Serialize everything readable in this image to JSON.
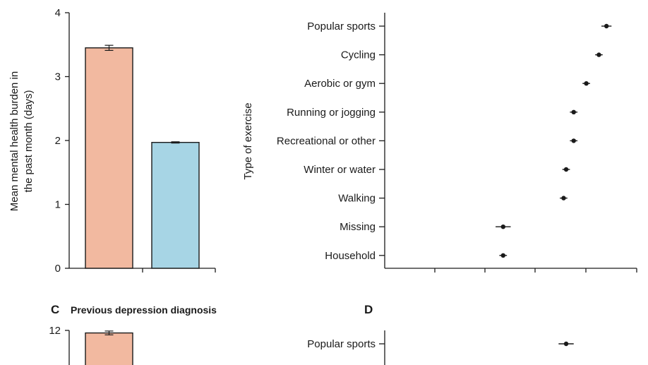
{
  "figure": {
    "panel_c_letter": "C",
    "panel_c_title": "Previous depression diagnosis",
    "panel_d_letter": "D"
  },
  "colors": {
    "bar_1": "#f2b9a0",
    "bar_2": "#a7d5e5",
    "outline": "#1a1a1a"
  },
  "chart_data": [
    {
      "id": "panel-a",
      "type": "bar",
      "ylabel_line1": "Mean mental health burden in",
      "ylabel_line2": "the past month (days)",
      "ylim": [
        0,
        4
      ],
      "yticks": [
        "0",
        "1",
        "2",
        "3",
        "4"
      ],
      "categories": [
        "",
        ""
      ],
      "values": [
        3.45,
        1.97
      ],
      "errors": [
        0.04,
        0.01
      ],
      "grid": false
    },
    {
      "id": "panel-b",
      "type": "scatter",
      "ylabel": "Type of exercise",
      "categories": [
        "Popular sports",
        "Cycling",
        "Aerobic or gym",
        "Running or jogging",
        "Recreational or other",
        "Winter or water",
        "Walking",
        "Missing",
        "Household"
      ],
      "values": [
        0.88,
        0.85,
        0.8,
        0.75,
        0.75,
        0.72,
        0.71,
        0.47,
        0.47
      ],
      "errors": [
        0.02,
        0.015,
        0.015,
        0.015,
        0.015,
        0.015,
        0.015,
        0.03,
        0.015
      ],
      "xlim": [
        0,
        1
      ],
      "grid": false
    },
    {
      "id": "panel-c",
      "type": "bar",
      "title": "Previous depression diagnosis",
      "yticks": [
        "12"
      ],
      "ylim": [
        0,
        12
      ],
      "categories": [
        ""
      ],
      "values": [
        11.6
      ],
      "errors": [
        0.3
      ]
    },
    {
      "id": "panel-d",
      "type": "scatter",
      "categories": [
        "Popular sports"
      ],
      "values": [
        0.72
      ],
      "errors": [
        0.03
      ],
      "xlim": [
        0,
        1
      ]
    }
  ]
}
